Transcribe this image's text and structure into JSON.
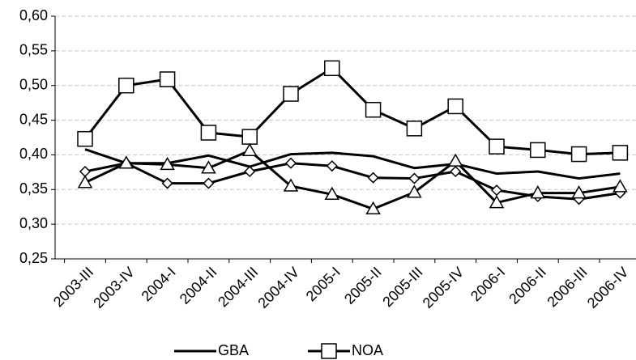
{
  "chart_data": {
    "type": "line",
    "categories": [
      "2003-III",
      "2003-IV",
      "2004-I",
      "2004-II",
      "2004-III",
      "2004-IV",
      "2005-I",
      "2005-II",
      "2005-III",
      "2005-IV",
      "2006-I",
      "2006-II",
      "2006-III",
      "2006-IV"
    ],
    "series": [
      {
        "name": "GBA",
        "color": "#000000",
        "marker": "none",
        "values": [
          0.408,
          0.388,
          0.388,
          0.399,
          0.383,
          0.401,
          0.403,
          0.398,
          0.381,
          0.387,
          0.373,
          0.376,
          0.366,
          0.373
        ]
      },
      {
        "name": "NOA",
        "color": "#000000",
        "marker": "square",
        "values": [
          0.423,
          0.5,
          0.509,
          0.432,
          0.426,
          0.488,
          0.525,
          0.465,
          0.438,
          0.47,
          0.412,
          0.407,
          0.401,
          0.403
        ]
      },
      {
        "color": "#000000",
        "marker": "diamond",
        "values": [
          0.376,
          0.388,
          0.359,
          0.359,
          0.376,
          0.388,
          0.384,
          0.367,
          0.366,
          0.376,
          0.349,
          0.34,
          0.336,
          0.345
        ]
      },
      {
        "color": "#000000",
        "marker": "triangle",
        "values": [
          0.36,
          0.388,
          0.386,
          0.381,
          0.406,
          0.355,
          0.343,
          0.322,
          0.346,
          0.391,
          0.331,
          0.345,
          0.345,
          0.354
        ]
      }
    ],
    "ylim": [
      0.25,
      0.6
    ],
    "yticks": [
      {
        "value": 0.25,
        "label": "0,25"
      },
      {
        "value": 0.3,
        "label": "0,30"
      },
      {
        "value": 0.35,
        "label": "0,35"
      },
      {
        "value": 0.4,
        "label": "0,40"
      },
      {
        "value": 0.45,
        "label": "0,45"
      },
      {
        "value": 0.5,
        "label": "0,50"
      },
      {
        "value": 0.55,
        "label": "0,55"
      },
      {
        "value": 0.6,
        "label": "0,60"
      }
    ],
    "grid": true
  }
}
